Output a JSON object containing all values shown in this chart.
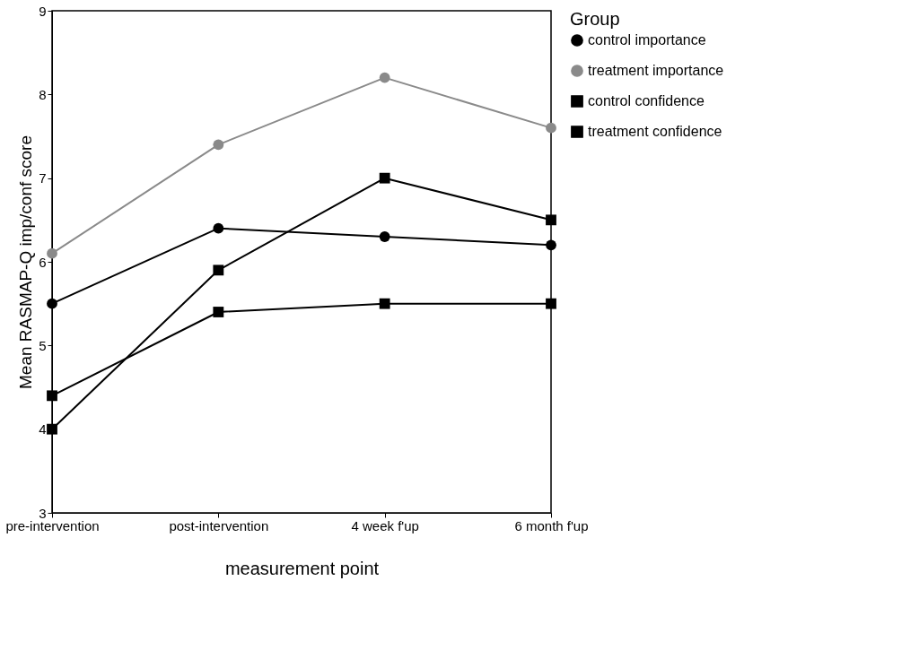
{
  "chart_data": {
    "type": "line",
    "xlabel": "measurement point",
    "ylabel": "Mean RASMAP-Q imp/conf score",
    "legend_title": "Group",
    "legend": "right",
    "grid": false,
    "categories": [
      "pre-intervention",
      "post-intervention",
      "4 week f'up",
      "6 month f'up"
    ],
    "ylim": [
      3,
      9
    ],
    "yticks": [
      3,
      4,
      5,
      6,
      7,
      8,
      9
    ],
    "line_style": "solid",
    "series": [
      {
        "name": "control importance",
        "color": "#000000",
        "marker": "circle",
        "values": [
          5.5,
          6.4,
          6.3,
          6.2
        ]
      },
      {
        "name": "treatment importance",
        "color": "#8a8a8a",
        "marker": "circle",
        "values": [
          6.1,
          7.4,
          8.2,
          7.6
        ]
      },
      {
        "name": "control confidence",
        "color": "#000000",
        "marker": "square",
        "values": [
          4.4,
          5.4,
          5.5,
          5.5
        ]
      },
      {
        "name": "treatment confidence",
        "color": "#000000",
        "marker": "square",
        "values": [
          4.0,
          5.9,
          7.0,
          6.5
        ]
      }
    ]
  }
}
